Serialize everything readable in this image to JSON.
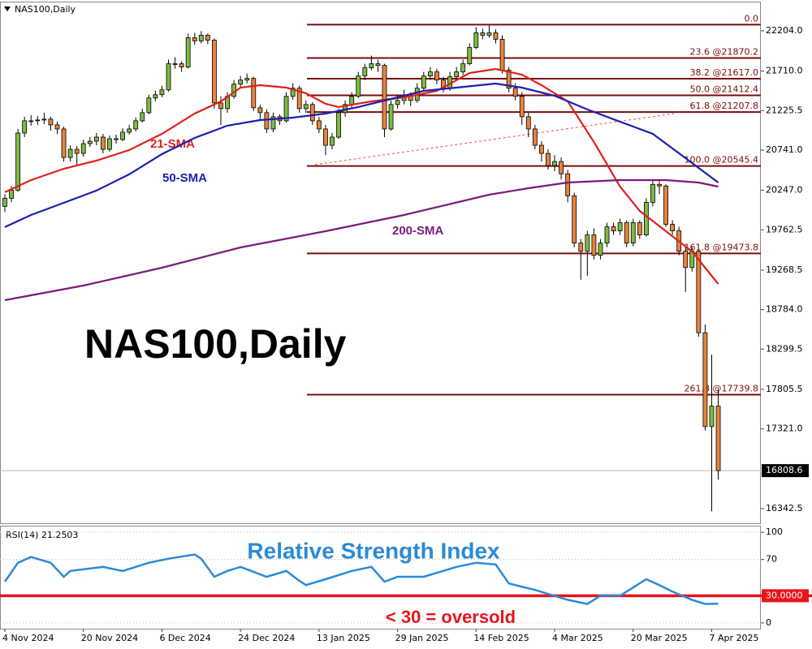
{
  "chart_data": [
    {
      "type": "candlestick",
      "title": "NAS100,Daily",
      "categories": [
        "4 Nov 2024",
        null,
        null,
        null,
        null,
        null,
        null,
        null,
        null,
        null,
        null,
        null,
        "20 Nov 2024",
        null,
        null,
        null,
        null,
        null,
        null,
        null,
        null,
        null,
        null,
        null,
        "6 Dec 2024",
        null,
        null,
        null,
        null,
        null,
        null,
        null,
        null,
        null,
        null,
        null,
        "24 Dec 2024",
        null,
        null,
        null,
        null,
        null,
        null,
        null,
        null,
        null,
        null,
        null,
        "13 Jan 2025",
        null,
        null,
        null,
        null,
        null,
        null,
        null,
        null,
        null,
        null,
        null,
        "29 Jan 2025",
        null,
        null,
        null,
        null,
        null,
        null,
        null,
        null,
        null,
        null,
        null,
        "14 Feb 2025",
        null,
        null,
        null,
        null,
        null,
        null,
        null,
        null,
        null,
        null,
        null,
        "4 Mar 2025",
        null,
        null,
        null,
        null,
        null,
        null,
        null,
        null,
        null,
        null,
        null,
        "20 Mar 2025",
        null,
        null,
        null,
        null,
        null,
        null,
        null,
        null,
        null,
        null,
        null,
        "7 Apr 2025",
        null
      ],
      "ohlc": [
        [
          20050,
          20200,
          19980,
          20150
        ],
        [
          20150,
          20300,
          20100,
          20250
        ],
        [
          20250,
          21000,
          20230,
          20950
        ],
        [
          20950,
          21150,
          20900,
          21100
        ],
        [
          21100,
          21170,
          21040,
          21100
        ],
        [
          21100,
          21160,
          21050,
          21110
        ],
        [
          21110,
          21200,
          21060,
          21120
        ],
        [
          21120,
          21150,
          20980,
          21050
        ],
        [
          21050,
          21090,
          20940,
          21000
        ],
        [
          21000,
          21030,
          20600,
          20650
        ],
        [
          20650,
          20800,
          20600,
          20750
        ],
        [
          20750,
          20790,
          20550,
          20700
        ],
        [
          20700,
          20870,
          20660,
          20820
        ],
        [
          20820,
          20900,
          20780,
          20850
        ],
        [
          20850,
          20950,
          20800,
          20900
        ],
        [
          20900,
          20940,
          20700,
          20750
        ],
        [
          20750,
          20920,
          20720,
          20880
        ],
        [
          20880,
          20930,
          20820,
          20870
        ],
        [
          20870,
          21010,
          20850,
          20960
        ],
        [
          20960,
          21050,
          20930,
          21000
        ],
        [
          21000,
          21140,
          20970,
          21100
        ],
        [
          21100,
          21250,
          21080,
          21200
        ],
        [
          21200,
          21420,
          21180,
          21380
        ],
        [
          21380,
          21470,
          21340,
          21420
        ],
        [
          21420,
          21530,
          21390,
          21480
        ],
        [
          21480,
          21850,
          21460,
          21800
        ],
        [
          21800,
          21880,
          21740,
          21800
        ],
        [
          21800,
          21830,
          21700,
          21760
        ],
        [
          21760,
          22170,
          21740,
          22120
        ],
        [
          22120,
          22180,
          22030,
          22080
        ],
        [
          22080,
          22200,
          22050,
          22150
        ],
        [
          22150,
          22170,
          22040,
          22090
        ],
        [
          22090,
          22110,
          21250,
          21320
        ],
        [
          21320,
          21400,
          21050,
          21250
        ],
        [
          21250,
          21450,
          21200,
          21400
        ],
        [
          21400,
          21600,
          21370,
          21550
        ],
        [
          21550,
          21650,
          21500,
          21600
        ],
        [
          21600,
          21680,
          21560,
          21620
        ],
        [
          21620,
          21640,
          21220,
          21260
        ],
        [
          21260,
          21300,
          21120,
          21200
        ],
        [
          21200,
          21240,
          20950,
          21000
        ],
        [
          21000,
          21200,
          20960,
          21150
        ],
        [
          21150,
          21180,
          21050,
          21100
        ],
        [
          21100,
          21450,
          21080,
          21400
        ],
        [
          21400,
          21560,
          21360,
          21500
        ],
        [
          21500,
          21530,
          21200,
          21250
        ],
        [
          21250,
          21350,
          21200,
          21300
        ],
        [
          21300,
          21330,
          21050,
          21100
        ],
        [
          21100,
          21150,
          20950,
          21000
        ],
        [
          21000,
          21050,
          20680,
          20800
        ],
        [
          20800,
          20950,
          20750,
          20900
        ],
        [
          20900,
          21250,
          20880,
          21200
        ],
        [
          21200,
          21350,
          21150,
          21300
        ],
        [
          21300,
          21450,
          21250,
          21400
        ],
        [
          21400,
          21700,
          21380,
          21650
        ],
        [
          21650,
          21800,
          21600,
          21750
        ],
        [
          21750,
          21900,
          21720,
          21800
        ],
        [
          21800,
          21850,
          21700,
          21780
        ],
        [
          21780,
          21800,
          20900,
          21000
        ],
        [
          21000,
          21350,
          20980,
          21300
        ],
        [
          21300,
          21420,
          21250,
          21350
        ],
        [
          21350,
          21480,
          21300,
          21400
        ],
        [
          21400,
          21450,
          21280,
          21350
        ],
        [
          21350,
          21560,
          21320,
          21500
        ],
        [
          21500,
          21700,
          21460,
          21650
        ],
        [
          21650,
          21760,
          21600,
          21700
        ],
        [
          21700,
          21740,
          21550,
          21600
        ],
        [
          21600,
          21640,
          21450,
          21500
        ],
        [
          21500,
          21700,
          21470,
          21640
        ],
        [
          21640,
          21760,
          21600,
          21700
        ],
        [
          21700,
          21850,
          21660,
          21800
        ],
        [
          21800,
          22050,
          21780,
          22000
        ],
        [
          22000,
          22250,
          21980,
          22180
        ],
        [
          22180,
          22230,
          22100,
          22150
        ],
        [
          22150,
          22270,
          22120,
          22180
        ],
        [
          22180,
          22220,
          22050,
          22100
        ],
        [
          22100,
          22150,
          21680,
          21720
        ],
        [
          21720,
          21760,
          21450,
          21500
        ],
        [
          21500,
          21560,
          21350,
          21400
        ],
        [
          21400,
          21450,
          21050,
          21150
        ],
        [
          21150,
          21200,
          20900,
          21000
        ],
        [
          21000,
          21050,
          20750,
          20800
        ],
        [
          20800,
          20850,
          20600,
          20700
        ],
        [
          20700,
          20750,
          20500,
          20550
        ],
        [
          20550,
          20680,
          20480,
          20600
        ],
        [
          20600,
          20650,
          20380,
          20450
        ],
        [
          20450,
          20500,
          20100,
          20180
        ],
        [
          20180,
          20220,
          19550,
          19600
        ],
        [
          19600,
          19650,
          19150,
          19500
        ],
        [
          19500,
          19750,
          19200,
          19700
        ],
        [
          19700,
          19780,
          19400,
          19450
        ],
        [
          19450,
          19650,
          19400,
          19600
        ],
        [
          19600,
          19850,
          19550,
          19800
        ],
        [
          19800,
          19850,
          19700,
          19750
        ],
        [
          19750,
          19900,
          19700,
          19850
        ],
        [
          19850,
          19880,
          19550,
          19600
        ],
        [
          19600,
          19900,
          19560,
          19850
        ],
        [
          19850,
          19880,
          19650,
          19700
        ],
        [
          19700,
          20150,
          19680,
          20100
        ],
        [
          20100,
          20380,
          20050,
          20320
        ],
        [
          20320,
          20360,
          20200,
          20300
        ],
        [
          20300,
          20320,
          19800,
          19830
        ],
        [
          19830,
          19880,
          19700,
          19750
        ],
        [
          19750,
          19800,
          19450,
          19500
        ],
        [
          19500,
          19550,
          19000,
          19300
        ],
        [
          19300,
          19550,
          19250,
          19500
        ],
        [
          19500,
          19520,
          18450,
          18500
        ],
        [
          18500,
          18600,
          17300,
          17350
        ],
        [
          17350,
          18230,
          16310,
          17600
        ],
        [
          17600,
          17800,
          16700,
          16808.6
        ]
      ],
      "up_color": "#7dbb42",
      "down_color": "#e8833a",
      "series": [
        {
          "name": "21-SMA",
          "color": "#e0201b",
          "x": [
            0,
            4,
            9,
            14,
            19,
            24,
            29,
            33,
            36,
            39,
            43,
            46,
            49,
            51,
            56,
            61,
            66,
            71,
            75,
            79,
            82,
            86,
            90,
            94,
            97,
            101,
            105,
            109
          ],
          "values": [
            20224,
            20373,
            20512,
            20612,
            20741,
            20940,
            21189,
            21338,
            21507,
            21537,
            21507,
            21438,
            21308,
            21269,
            21338,
            21388,
            21467,
            21686,
            21736,
            21666,
            21537,
            21338,
            20841,
            20293,
            19995,
            19746,
            19497,
            19099
          ]
        },
        {
          "name": "50-SMA",
          "color": "#1a1fb0",
          "x": [
            0,
            4,
            9,
            14,
            19,
            24,
            29,
            34,
            39,
            44,
            49,
            54,
            59,
            64,
            69,
            75,
            79,
            84,
            89,
            94,
            99,
            104,
            109
          ],
          "values": [
            19796,
            19945,
            20094,
            20244,
            20443,
            20691,
            20890,
            21040,
            21109,
            21139,
            21189,
            21269,
            21368,
            21467,
            21507,
            21557,
            21507,
            21408,
            21239,
            21089,
            20940,
            20642,
            20343
          ]
        },
        {
          "name": "200-SMA",
          "color": "#7b1a7b",
          "x": [
            0,
            12,
            24,
            36,
            49,
            61,
            74,
            80,
            86,
            94,
            101,
            106,
            109
          ],
          "values": [
            18900,
            19079,
            19298,
            19547,
            19746,
            19945,
            20194,
            20273,
            20343,
            20373,
            20373,
            20343,
            20293
          ]
        }
      ],
      "fib_color": "#7a0c0c",
      "fib_levels": [
        {
          "value": 22279.4,
          "label": "0.0"
        },
        {
          "value": 21870.2,
          "label": "23.6 @21870.2"
        },
        {
          "value": 21617.0,
          "label": "38.2 @21617.0"
        },
        {
          "value": 21412.4,
          "label": "50.0 @21412.4"
        },
        {
          "value": 21207.8,
          "label": "61.8 @21207.8"
        },
        {
          "value": 20545.4,
          "label": "100.0 @20545.4"
        },
        {
          "value": 19473.8,
          "label": "161.8 @19473.8"
        },
        {
          "value": 17739.8,
          "label": "261.8 @17739.8"
        }
      ],
      "last_price": 16808.6,
      "ylim": [
        16163,
        22582
      ],
      "yticks": [
        {
          "value": 22204.0,
          "label": "22204.0"
        },
        {
          "value": 21710.0,
          "label": "21710.0"
        },
        21225.5,
        {
          "value": 20741.0,
          "label": "20741.0"
        },
        {
          "value": 20247.0,
          "label": "20247.0"
        },
        19762.5,
        19268.5,
        {
          "value": 18784.0,
          "label": "18784.0"
        },
        18299.5,
        17805.5,
        {
          "value": 17321.0,
          "label": "17321.0"
        },
        16342.5
      ]
    },
    {
      "type": "line",
      "title": "RSI(14) 21.2503",
      "subtitle": "Relative Strength Index",
      "annotation": "< 30 = oversold",
      "color": "#2b8ad6",
      "x": [
        0,
        2,
        4,
        7,
        9,
        10,
        15,
        18,
        22,
        25,
        29,
        30,
        32,
        34,
        36,
        40,
        43,
        45,
        46,
        49,
        53,
        56,
        58,
        60,
        64,
        69,
        72,
        75,
        77,
        81,
        86,
        89,
        91,
        94,
        96,
        98,
        100,
        102,
        105,
        107,
        109
      ],
      "values": [
        45.5,
        66.4,
        72.7,
        66.4,
        50.9,
        57.3,
        61.8,
        57.3,
        66.4,
        70.9,
        75.5,
        70.9,
        50.9,
        57.3,
        61.8,
        50.9,
        57.3,
        46.4,
        41.8,
        48.2,
        57.3,
        61.8,
        45.5,
        50.9,
        50.9,
        61.8,
        66.4,
        64.5,
        43.6,
        36.4,
        25.5,
        20.9,
        30.0,
        30.0,
        39.1,
        48.2,
        41.8,
        34.5,
        25.5,
        20.9,
        21.2503
      ],
      "level": {
        "value": 30,
        "label": "30.0000"
      },
      "level_color": "#e8151b",
      "ylim": [
        -6.4,
        107.3
      ],
      "yticks": [
        0,
        70,
        100
      ],
      "grid": true
    }
  ]
}
